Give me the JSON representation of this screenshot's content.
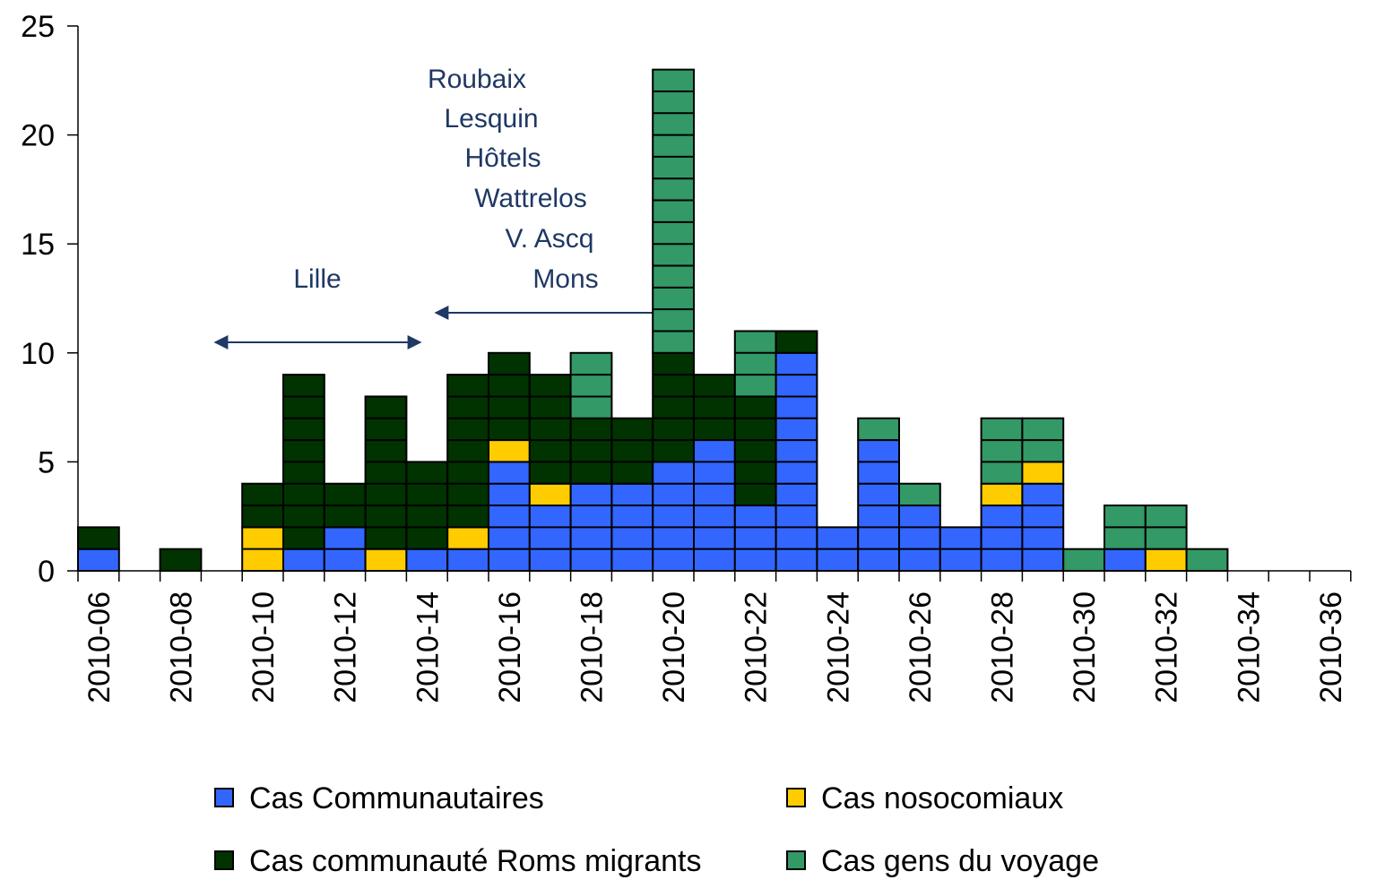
{
  "chart_data": {
    "type": "stacked_bar",
    "categories": [
      "2010-06",
      null,
      "2010-08",
      null,
      "2010-10",
      null,
      "2010-12",
      null,
      "2010-14",
      null,
      "2010-16",
      null,
      "2010-18",
      null,
      "2010-20",
      null,
      "2010-22",
      null,
      "2010-24",
      null,
      "2010-26",
      null,
      "2010-28",
      null,
      "2010-30",
      null,
      "2010-32",
      null,
      "2010-34",
      null,
      "2010-36"
    ],
    "series": [
      {
        "name": "Cas Communautaires",
        "color": "#3366ff",
        "values": [
          1,
          0,
          0,
          0,
          0,
          1,
          2,
          0,
          1,
          1,
          5,
          3,
          4,
          4,
          5,
          6,
          3,
          10,
          2,
          6,
          3,
          2,
          3,
          4,
          0,
          1,
          0,
          0,
          0,
          0,
          0
        ]
      },
      {
        "name": "Cas nosocomiaux",
        "color": "#ffcc00",
        "values": [
          0,
          0,
          0,
          0,
          2,
          0,
          0,
          1,
          0,
          1,
          1,
          1,
          0,
          0,
          0,
          0,
          0,
          0,
          0,
          0,
          0,
          0,
          1,
          1,
          0,
          0,
          1,
          0,
          0,
          0,
          0
        ]
      },
      {
        "name": "Cas communauté Roms migrants",
        "color": "#003300",
        "values": [
          1,
          0,
          1,
          0,
          2,
          8,
          2,
          7,
          4,
          7,
          4,
          5,
          3,
          3,
          5,
          3,
          5,
          1,
          0,
          0,
          0,
          0,
          0,
          0,
          0,
          0,
          0,
          0,
          0,
          0,
          0
        ]
      },
      {
        "name": "Cas gens du voyage",
        "color": "#339966",
        "values": [
          0,
          0,
          0,
          0,
          0,
          0,
          0,
          0,
          0,
          0,
          0,
          0,
          3,
          0,
          13,
          0,
          3,
          0,
          0,
          1,
          1,
          0,
          3,
          2,
          1,
          2,
          2,
          1,
          0,
          0,
          0
        ]
      }
    ],
    "ylim": [
      0,
      25
    ],
    "yticks": [
      0,
      5,
      10,
      15,
      20,
      25
    ],
    "annotations": [
      "Roubaix",
      "Lesquin",
      "Hôtels",
      "Wattrelos",
      "V. Ascq",
      "Mons",
      "Lille"
    ],
    "legend": "bottom"
  }
}
